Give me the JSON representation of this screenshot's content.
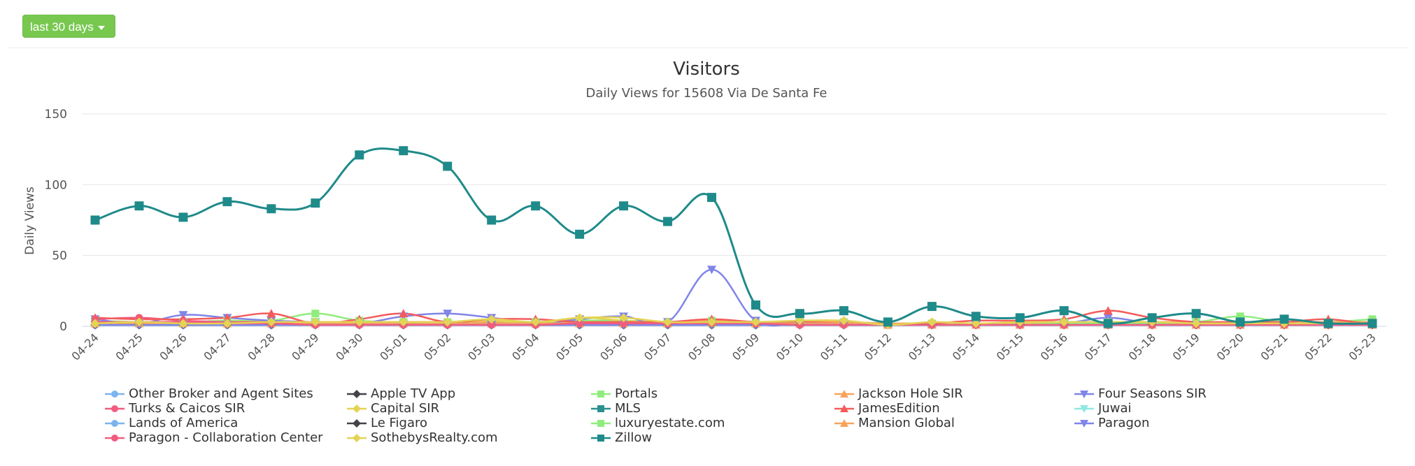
{
  "controls": {
    "range_label": "last 30 days"
  },
  "chart_data": {
    "type": "line",
    "title": "Visitors",
    "subtitle": "Daily Views for 15608 Via De Santa Fe",
    "ylabel": "Daily Views",
    "xlabel": "",
    "ylim": [
      0,
      150
    ],
    "yticks": [
      0,
      50,
      100,
      150
    ],
    "grid": true,
    "legend_position": "bottom",
    "categories": [
      "04-24",
      "04-25",
      "04-26",
      "04-27",
      "04-28",
      "04-29",
      "04-30",
      "05-01",
      "05-02",
      "05-03",
      "05-04",
      "05-05",
      "05-06",
      "05-07",
      "05-08",
      "05-09",
      "05-10",
      "05-11",
      "05-12",
      "05-13",
      "05-14",
      "05-15",
      "05-16",
      "05-17",
      "05-18",
      "05-19",
      "05-20",
      "05-21",
      "05-22",
      "05-23"
    ],
    "series": [
      {
        "name": "Other Broker and Agent Sites",
        "color": "#7cb5ec",
        "marker": "circle",
        "values": [
          2,
          1,
          1,
          1,
          1,
          1,
          1,
          1,
          1,
          1,
          1,
          1,
          1,
          1,
          1,
          1,
          1,
          1,
          1,
          1,
          1,
          1,
          1,
          1,
          1,
          1,
          1,
          1,
          1,
          1
        ]
      },
      {
        "name": "Apple TV App",
        "color": "#434348",
        "marker": "diamond",
        "values": [
          1,
          1,
          1,
          1,
          1,
          1,
          1,
          1,
          1,
          1,
          1,
          1,
          1,
          1,
          1,
          1,
          1,
          1,
          1,
          1,
          1,
          1,
          1,
          1,
          1,
          1,
          1,
          1,
          1,
          1
        ]
      },
      {
        "name": "Portals",
        "color": "#90ed7d",
        "marker": "square",
        "values": [
          4,
          3,
          3,
          4,
          4,
          9,
          4,
          3,
          3,
          3,
          3,
          4,
          4,
          3,
          4,
          3,
          3,
          3,
          2,
          2,
          2,
          2,
          3,
          3,
          3,
          3,
          7,
          3,
          3,
          5
        ]
      },
      {
        "name": "Jackson Hole SIR",
        "color": "#f7a35c",
        "marker": "triangle",
        "values": [
          3,
          3,
          3,
          3,
          3,
          3,
          3,
          3,
          3,
          3,
          3,
          3,
          3,
          3,
          4,
          3,
          3,
          3,
          2,
          2,
          2,
          2,
          2,
          2,
          3,
          3,
          3,
          3,
          3,
          3
        ]
      },
      {
        "name": "Four Seasons SIR",
        "color": "#8085e9",
        "marker": "triangle-down",
        "values": [
          5,
          2,
          8,
          6,
          4,
          3,
          2,
          7,
          9,
          6,
          2,
          5,
          7,
          3,
          40,
          4,
          2,
          2,
          1,
          1,
          1,
          1,
          2,
          6,
          2,
          1,
          1,
          1,
          1,
          1
        ]
      },
      {
        "name": "Turks & Caicos SIR",
        "color": "#f15c80",
        "marker": "circle",
        "values": [
          5,
          6,
          4,
          3,
          3,
          2,
          2,
          2,
          2,
          2,
          2,
          2,
          2,
          2,
          2,
          2,
          2,
          2,
          1,
          1,
          1,
          1,
          2,
          2,
          2,
          2,
          2,
          2,
          2,
          2
        ]
      },
      {
        "name": "Capital SIR",
        "color": "#e4d354",
        "marker": "diamond",
        "values": [
          2,
          2,
          2,
          2,
          2,
          2,
          2,
          2,
          2,
          4,
          2,
          6,
          4,
          2,
          2,
          2,
          2,
          2,
          1,
          2,
          2,
          2,
          2,
          2,
          2,
          2,
          2,
          2,
          2,
          2
        ]
      },
      {
        "name": "MLS",
        "color": "#2b908f",
        "marker": "square",
        "values": [
          3,
          2,
          2,
          2,
          2,
          2,
          2,
          2,
          2,
          2,
          2,
          2,
          2,
          2,
          2,
          2,
          2,
          2,
          1,
          1,
          1,
          1,
          1,
          1,
          1,
          1,
          1,
          1,
          1,
          1
        ]
      },
      {
        "name": "JamesEdition",
        "color": "#f45b5b",
        "marker": "triangle",
        "values": [
          6,
          5,
          5,
          6,
          9,
          2,
          5,
          9,
          3,
          5,
          5,
          3,
          3,
          3,
          5,
          3,
          3,
          2,
          1,
          2,
          4,
          4,
          5,
          11,
          6,
          3,
          3,
          3,
          5,
          1
        ]
      },
      {
        "name": "Juwai",
        "color": "#91e8e1",
        "marker": "triangle-down",
        "values": [
          1,
          1,
          1,
          1,
          1,
          1,
          1,
          1,
          1,
          1,
          1,
          1,
          1,
          1,
          1,
          1,
          1,
          1,
          1,
          1,
          1,
          1,
          1,
          1,
          1,
          1,
          1,
          1,
          1,
          1
        ]
      },
      {
        "name": "Lands of America",
        "color": "#7cb5ec",
        "marker": "circle",
        "values": [
          1,
          1,
          1,
          1,
          1,
          1,
          1,
          1,
          1,
          1,
          1,
          1,
          1,
          1,
          1,
          1,
          1,
          1,
          1,
          1,
          1,
          1,
          1,
          1,
          1,
          1,
          1,
          1,
          1,
          1
        ]
      },
      {
        "name": "Le Figaro",
        "color": "#434348",
        "marker": "diamond",
        "values": [
          1,
          1,
          1,
          1,
          1,
          1,
          1,
          1,
          1,
          1,
          1,
          1,
          1,
          1,
          1,
          1,
          1,
          1,
          1,
          1,
          1,
          1,
          1,
          1,
          1,
          1,
          1,
          1,
          1,
          1
        ]
      },
      {
        "name": "luxuryestate.com",
        "color": "#90ed7d",
        "marker": "square",
        "values": [
          2,
          2,
          2,
          2,
          2,
          3,
          2,
          2,
          2,
          2,
          2,
          2,
          2,
          2,
          2,
          2,
          2,
          2,
          1,
          1,
          1,
          1,
          2,
          2,
          2,
          2,
          2,
          2,
          2,
          2
        ]
      },
      {
        "name": "Mansion Global",
        "color": "#f7a35c",
        "marker": "triangle",
        "values": [
          2,
          2,
          2,
          2,
          2,
          2,
          2,
          2,
          2,
          2,
          2,
          2,
          2,
          2,
          3,
          2,
          2,
          2,
          1,
          1,
          1,
          1,
          1,
          1,
          1,
          1,
          1,
          1,
          1,
          1
        ]
      },
      {
        "name": "Paragon",
        "color": "#8085e9",
        "marker": "triangle-down",
        "values": [
          1,
          1,
          1,
          1,
          1,
          1,
          1,
          1,
          1,
          1,
          1,
          1,
          1,
          1,
          1,
          1,
          1,
          1,
          1,
          1,
          1,
          1,
          1,
          1,
          1,
          1,
          1,
          1,
          1,
          1
        ]
      },
      {
        "name": "Paragon - Collaboration Center",
        "color": "#f15c80",
        "marker": "circle",
        "values": [
          3,
          3,
          3,
          2,
          2,
          1,
          1,
          1,
          1,
          1,
          1,
          2,
          2,
          2,
          2,
          2,
          1,
          1,
          1,
          1,
          1,
          1,
          1,
          1,
          1,
          1,
          1,
          1,
          1,
          1
        ]
      },
      {
        "name": "SothebysRealty.com",
        "color": "#e4d354",
        "marker": "diamond",
        "values": [
          2,
          3,
          2,
          2,
          3,
          3,
          3,
          3,
          3,
          5,
          3,
          6,
          6,
          3,
          3,
          3,
          4,
          4,
          1,
          3,
          2,
          3,
          3,
          3,
          3,
          2,
          2,
          2,
          2,
          2
        ]
      },
      {
        "name": "Zillow",
        "color": "#1f8a8a",
        "marker": "square",
        "values": [
          75,
          85,
          77,
          88,
          83,
          87,
          121,
          124,
          113,
          75,
          85,
          65,
          85,
          74,
          91,
          15,
          9,
          11,
          3,
          14,
          7,
          6,
          11,
          2,
          6,
          9,
          3,
          5,
          2,
          2
        ]
      }
    ]
  }
}
